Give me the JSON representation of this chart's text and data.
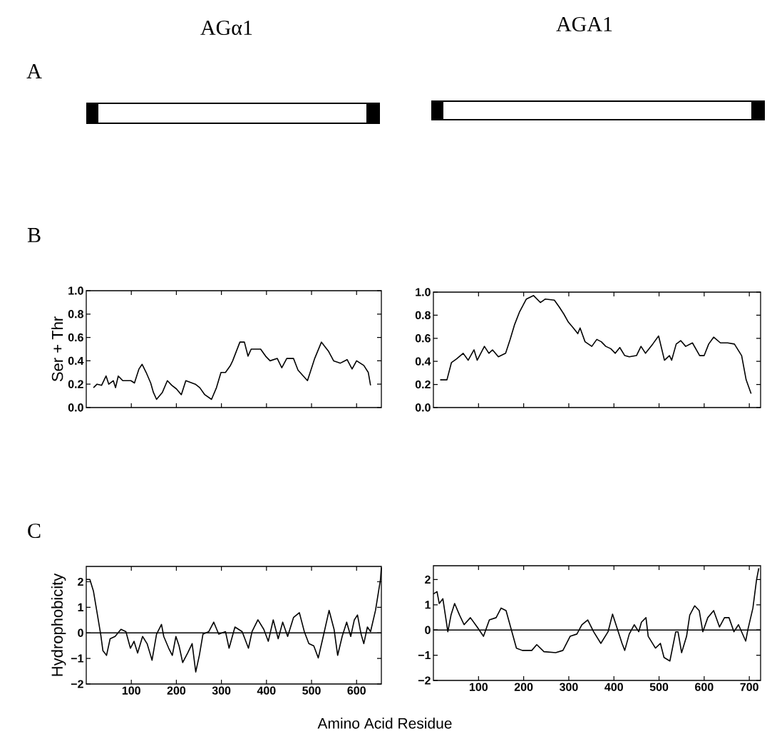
{
  "chart_data": [
    {
      "type": "line",
      "title": "AGα1",
      "ylabel": "Ser + Thr",
      "annotations": [
        "A",
        "B"
      ],
      "xlim": [
        0,
        655
      ],
      "ylim": [
        0,
        1
      ],
      "xticks": [
        {
          "value": 100,
          "label": null
        },
        {
          "value": 200,
          "label": null
        },
        {
          "value": 300,
          "label": null
        },
        {
          "value": 400,
          "label": null
        },
        {
          "value": 500,
          "label": null
        },
        {
          "value": 600,
          "label": null
        }
      ],
      "yticks": [
        {
          "value": 0,
          "label": "0.0"
        },
        0.2,
        0.4,
        0.6,
        0.8,
        {
          "value": 1,
          "label": "1.0"
        }
      ],
      "tick_labels": "y",
      "series": [
        {
          "color": "#000000",
          "x": [
            16,
            24,
            34,
            44,
            50,
            60,
            65,
            71,
            81,
            99,
            107,
            117,
            124,
            133,
            143,
            149,
            156,
            169,
            180,
            190,
            200,
            211,
            221,
            242,
            252,
            263,
            278,
            289,
            299,
            309,
            320,
            325,
            341,
            351,
            359,
            366,
            387,
            398,
            408,
            424,
            434,
            445,
            460,
            470,
            491,
            507,
            522,
            538,
            549,
            564,
            579,
            590,
            600,
            616,
            626,
            631
          ],
          "values": [
            0.17,
            0.2,
            0.19,
            0.27,
            0.2,
            0.23,
            0.17,
            0.27,
            0.23,
            0.23,
            0.21,
            0.33,
            0.37,
            0.3,
            0.21,
            0.13,
            0.07,
            0.13,
            0.23,
            0.19,
            0.16,
            0.11,
            0.23,
            0.2,
            0.17,
            0.11,
            0.07,
            0.17,
            0.3,
            0.3,
            0.36,
            0.4,
            0.56,
            0.56,
            0.44,
            0.5,
            0.5,
            0.44,
            0.4,
            0.42,
            0.34,
            0.42,
            0.42,
            0.32,
            0.23,
            0.42,
            0.56,
            0.48,
            0.4,
            0.38,
            0.41,
            0.33,
            0.4,
            0.36,
            0.3,
            0.19
          ]
        }
      ]
    },
    {
      "type": "line",
      "title": "AGA1",
      "xlim": [
        0,
        725
      ],
      "ylim": [
        0,
        1
      ],
      "xticks": [
        {
          "value": 100,
          "label": null
        },
        {
          "value": 200,
          "label": null
        },
        {
          "value": 300,
          "label": null
        },
        {
          "value": 400,
          "label": null
        },
        {
          "value": 500,
          "label": null
        },
        {
          "value": 600,
          "label": null
        },
        {
          "value": 700,
          "label": null
        }
      ],
      "yticks": [
        {
          "value": 0,
          "label": "0.0"
        },
        0.2,
        0.4,
        0.6,
        0.8,
        {
          "value": 1,
          "label": "1.0"
        }
      ],
      "tick_labels": "y",
      "series": [
        {
          "color": "#000000",
          "x": [
            15,
            30,
            40,
            51,
            66,
            77,
            90,
            97,
            113,
            123,
            131,
            144,
            160,
            170,
            180,
            191,
            206,
            222,
            237,
            248,
            268,
            279,
            289,
            299,
            310,
            320,
            325,
            336,
            351,
            362,
            372,
            382,
            393,
            403,
            413,
            424,
            434,
            450,
            460,
            470,
            486,
            499,
            512,
            523,
            528,
            538,
            548,
            559,
            574,
            590,
            600,
            610,
            621,
            636,
            652,
            667,
            683,
            693,
            704
          ],
          "values": [
            0.24,
            0.24,
            0.39,
            0.42,
            0.47,
            0.41,
            0.5,
            0.41,
            0.53,
            0.47,
            0.5,
            0.44,
            0.47,
            0.59,
            0.72,
            0.83,
            0.94,
            0.97,
            0.91,
            0.94,
            0.93,
            0.87,
            0.81,
            0.74,
            0.69,
            0.64,
            0.69,
            0.57,
            0.53,
            0.59,
            0.57,
            0.53,
            0.51,
            0.47,
            0.52,
            0.45,
            0.44,
            0.45,
            0.53,
            0.47,
            0.55,
            0.62,
            0.41,
            0.45,
            0.41,
            0.55,
            0.58,
            0.53,
            0.56,
            0.45,
            0.45,
            0.55,
            0.61,
            0.56,
            0.56,
            0.55,
            0.45,
            0.24,
            0.12
          ]
        }
      ]
    },
    {
      "type": "line",
      "ylabel": "Hydrophobicity",
      "xlabel": "Amino Acid Residue",
      "annotations": [
        "C"
      ],
      "xlim": [
        0,
        655
      ],
      "ylim": [
        -2,
        2.6
      ],
      "xticks": [
        100,
        200,
        300,
        400,
        500,
        600
      ],
      "yticks": [
        {
          "value": -2,
          "label": "−2"
        },
        {
          "value": -1,
          "label": "−1"
        },
        0,
        1,
        2
      ],
      "ref_lines": [
        {
          "axis": "y",
          "value": 0
        }
      ],
      "series": [
        {
          "color": "#000000",
          "x": [
            0,
            8,
            16,
            24,
            32,
            37,
            45,
            53,
            64,
            77,
            88,
            98,
            106,
            114,
            125,
            135,
            146,
            156,
            167,
            172,
            183,
            191,
            199,
            206,
            214,
            225,
            235,
            243,
            251,
            259,
            272,
            283,
            294,
            309,
            317,
            330,
            346,
            360,
            368,
            381,
            394,
            404,
            415,
            426,
            436,
            447,
            460,
            473,
            484,
            494,
            505,
            515,
            526,
            539,
            550,
            558,
            568,
            578,
            587,
            595,
            602,
            610,
            616,
            624,
            631,
            642,
            653,
            655
          ],
          "values": [
            2.09,
            2.09,
            1.63,
            0.79,
            -0.05,
            -0.7,
            -0.88,
            -0.23,
            -0.14,
            0.14,
            0.05,
            -0.6,
            -0.33,
            -0.79,
            -0.14,
            -0.42,
            -1.07,
            -0.05,
            0.33,
            -0.14,
            -0.6,
            -0.88,
            -0.14,
            -0.51,
            -1.16,
            -0.79,
            -0.42,
            -1.53,
            -0.88,
            -0.05,
            0.05,
            0.42,
            -0.05,
            0.05,
            -0.6,
            0.23,
            0.05,
            -0.6,
            0.05,
            0.51,
            0.14,
            -0.33,
            0.51,
            -0.23,
            0.42,
            -0.14,
            0.6,
            0.79,
            0.05,
            -0.42,
            -0.51,
            -0.98,
            -0.14,
            0.88,
            0.14,
            -0.88,
            -0.14,
            0.42,
            -0.14,
            0.51,
            0.7,
            -0.05,
            -0.42,
            0.23,
            0.05,
            0.88,
            2.09,
            2.56
          ]
        }
      ]
    },
    {
      "type": "line",
      "xlim": [
        0,
        725
      ],
      "ylim": [
        -2,
        2.55
      ],
      "xticks": [
        100,
        200,
        300,
        400,
        500,
        600,
        700
      ],
      "yticks": [
        {
          "value": -2,
          "label": "−2"
        },
        {
          "value": -1,
          "label": "−1"
        },
        0,
        1,
        2
      ],
      "ref_lines": [
        {
          "axis": "y",
          "value": 0
        }
      ],
      "series": [
        {
          "color": "#000000",
          "x": [
            0,
            8,
            13,
            21,
            32,
            39,
            47,
            58,
            68,
            82,
            97,
            111,
            124,
            139,
            150,
            161,
            171,
            184,
            197,
            218,
            229,
            245,
            271,
            287,
            303,
            318,
            329,
            342,
            355,
            371,
            387,
            397,
            418,
            424,
            434,
            445,
            455,
            461,
            471,
            476,
            492,
            503,
            511,
            524,
            537,
            542,
            550,
            561,
            568,
            579,
            589,
            597,
            608,
            621,
            634,
            645,
            655,
            666,
            676,
            692,
            697,
            708,
            716,
            721
          ],
          "values": [
            1.43,
            1.52,
            1.05,
            1.24,
            -0.07,
            0.59,
            1.05,
            0.59,
            0.21,
            0.49,
            0.12,
            -0.25,
            0.4,
            0.49,
            0.87,
            0.77,
            0.12,
            -0.72,
            -0.81,
            -0.81,
            -0.58,
            -0.86,
            -0.9,
            -0.81,
            -0.25,
            -0.16,
            0.21,
            0.4,
            -0.07,
            -0.53,
            -0.07,
            0.63,
            -0.53,
            -0.81,
            -0.16,
            0.21,
            -0.07,
            0.31,
            0.49,
            -0.25,
            -0.72,
            -0.53,
            -1.09,
            -1.23,
            -0.07,
            -0.07,
            -0.9,
            -0.25,
            0.59,
            0.96,
            0.77,
            -0.07,
            0.49,
            0.77,
            0.12,
            0.49,
            0.49,
            -0.07,
            0.21,
            -0.44,
            0.03,
            0.87,
            1.99,
            2.45
          ]
        }
      ]
    }
  ]
}
